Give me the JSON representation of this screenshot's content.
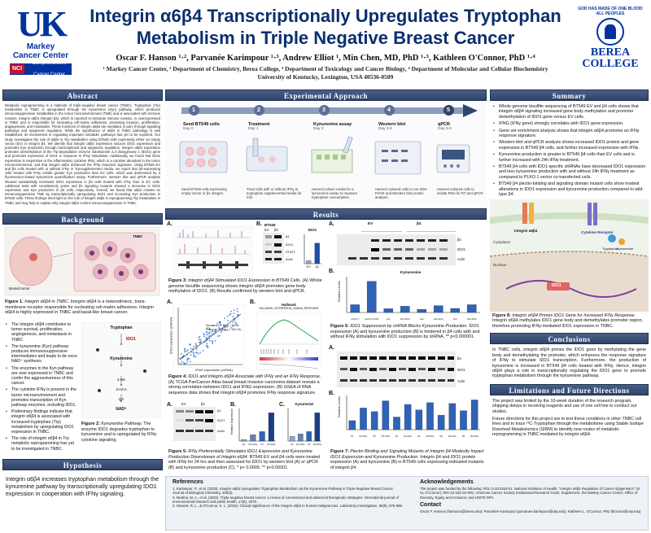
{
  "header": {
    "title_line1": "Integrin α6β4 Transcriptionally Upregulates Tryptophan",
    "title_line2": "Metabolism in Triple Negative Breast Cancer",
    "authors": "Oscar F. Hanson ¹·², Parvanée Karimpour ¹·³, Andrew Elliot ¹, Min Chen, MD, PhD ¹·³, Kathleen O'Connor, PhD ¹·⁴",
    "affiliations_line1": "¹ Markey Cancer Center, ² Department of Chemistry, Berea College, ³ Department of Toxicology and Cancer Biology, ⁴ Department of Molecular and Cellular Biochemistry",
    "affiliations_line2": "University of Kentucky, Lexington, USA 40536-0509",
    "left_logo_mark": "UK",
    "left_logo_line1": "Markey",
    "left_logo_line2": "Cancer Center",
    "nci_badge": "NCI",
    "nci_text": "Comprehensive Cancer Center",
    "right_logo_arc": "GOD HAS MADE OF ONE BLOOD ALL PEOPLES",
    "right_logo_line1": "BEREA",
    "right_logo_line2": "COLLEGE"
  },
  "abstract": {
    "heading": "Abstract",
    "text": "Metabolic reprogramming is a hallmark of triple-negative breast cancer (TNBC). Tryptophan (Trp) metabolism in TNBC is upregulated through the kynurenine (Kyn) pathway, which produces immunosuppressive metabolites in the tumor microenvironment (TME) and is associated with immune evasion. Integrin α6β4 (integrin β4), which is reported to stimulate immune evasion, is overexpressed in TNBC and is responsible for nucleating cell-matrix adhesions, promoting invasion, proliferation, angiogenesis, and metastasis. These functions of integrin α6β4 are mediated, in part, through signaling pathways and epigenetic regulation. While the significance of α6β4 in TNBC pathology is well established, its involvement in regulating important metabolic pathways has yet to be explored. Our study investigates the role of α6β4 in Trp metabolism using BT549 cells expressing either an empty vector (EV) or integrin β4. We identify that integrin α6β4 expression induces IDO1 expression and promotes Kyn production through transcriptional and epigenetic regulation. Integrin α6β4 expression promotes demethylation of the Trp-degradation enzyme indoleamine 2,3 dioxygenase 1 (IDO1) gene and promotes expression of IDO1 in response to IFNγ stimulation. Additionally, we found that IDO1 expression is responsive to the inflammatory cytokine IFNγ, which is a cytokine abundant in the tumor microenvironment, and that integrin α6β4 enhanced the IFNγ response signature. Using BT549 EV and β4 cells treated with or without IFNγ in Trp-supplemented media, we report that β4-expressing cells treated with IFNγ exhibit greater Kyn production than EV cells, which was determined by a fluorescence-based kynurenine quantification assay. Furthermore, western blot and qPCR analysis showed substantially increased IDO1 expression in β4 cells treated with IFNγ than in EV cells. Additional tests with constitutively active and β4 signaling mutants showed a decrease in IDO1 expression and Kyn production in β4 cells, respectively. Overall, we found that α6β4 creates an immunosuppressive TME by transcriptionally upregulating IDO1 and increasing Kyn production in BT549 cells. These findings shed light on the role of integrin α6β4 in reprogramming Trp metabolism in TNBC and may help to explain why integrin α6β4 confers immunosuppression in TNBC."
  },
  "approach": {
    "heading": "Experimental Approach",
    "steps": [
      {
        "num": "1",
        "title": "Seed BT549 cells",
        "day": "Day 0",
        "desc": "Seed BT549 cells expressing empty vector or β4 integrin."
      },
      {
        "num": "2",
        "title": "Treatment",
        "day": "Day 1",
        "desc": "Treat cells with or without IFNγ in tryptophan supplemented media for 24h."
      },
      {
        "num": "3",
        "title": "Kynurenine assay",
        "day": "Day 2",
        "desc": "Harvest culture media for a kynurenine assay to measure tryptophan consumption."
      },
      {
        "num": "4",
        "title": "Western blot",
        "day": "Day 3-6",
        "desc": "Harvest cultured cells to run SDS-PAGE and Western blot protein analysis."
      },
      {
        "num": "5",
        "title": "qPCR",
        "day": "Day 3-6",
        "desc": "Harvest cultured cells to isolate RNA for RT and qPCR."
      }
    ]
  },
  "summary": {
    "heading": "Summary",
    "bullets": [
      "Whole genome bisulfite sequencing of BT549 EV and β4 cells shows that integrin α6β4 signaling increased gene body methylation and promoter demethylation of IDO1 gene versus EV cells.",
      "IFNG (IFNγ gene) strongly correlates with IDO1 gene expression.",
      "Gene set enrichment analysis shows that integrin α6β4 promotes an IFNγ response signature.",
      "Western blot and qPCR analysis shows increased IDO1 protein and gene expression in BT549 β4 cells, and further increased expression with IFNγ.",
      "Kynurenine production is greater in BT549 β4 cells than EV cells and is further increased with 24h IFNγ treatment.",
      "BT549 β4 cells with IDO1-specific shRNAs have decreased IDO1 expression and less kynurenine production with and without 24h IFNγ treatment as compared to PLKO.1 vector co-transfected cells.",
      "BT549 β4 plectin-binding and signaling domain mutant cells show modest alterations in IDO1 expression and kynurenine production compared to wild-type β4."
    ],
    "fig8_caption_bold": "Figure 8:",
    "fig8_caption_italic": "Integrin α6β4 Primes IDO1 Gene for Increased IFNγ Response.",
    "fig8_caption_text": "Integrin α6β4 methylates IDO1 gene body and demethylates promoter region, therefore promoting IFNγ-mediated IDO1 expression in TNBC.",
    "fig8_labels": [
      "Integrin α6β4",
      "Cytokine Receptor",
      "Cytoplasm",
      "Nucleus",
      "IDO1",
      "Tryptophan",
      "Kynurenine"
    ]
  },
  "background": {
    "heading": "Background",
    "fig1_caption_bold": "Figure 1:",
    "fig1_caption_italic": "Integrin α6β4 in TNBC.",
    "fig1_caption_text": "Integrin α6β4 is a heterodimeric, trans-membrane receptor responsible for nucleating cell-matrix adhesions. Integrin α6β4 is highly expressed in TNBC and basal-like breast cancer.",
    "fig1_labels": [
      "Breast tumor",
      "TNBC"
    ],
    "bullets": [
      "The integrin α6β4 contributes to tumor survival, proliferation, angiogenesis, and metastasis in TNBC",
      "The kynurenine (Kyn) pathway produces immunosuppressive intermediates and leads to de novo NAD⁺ synthesis.",
      "The enzymes in the Kyn pathway are over-expressed in TNBC and confer the aggressiveness of this cancer.",
      "The cytokine IFNγ is present in the tumor microenvironment and promotes transcription of Kyn pathway enzymes, including IDO1.",
      "Preliminary findings indicate that integrin α6β4 is associated with increased tryptophan (Trp) metabolism by upregulating IDO1 expression in TNBC.",
      "The role of integrin α6β4 in Trp metabolic reprogramming has yet to be investigated in TNBC."
    ],
    "fig2_caption_bold": "Figure 2:",
    "fig2_caption_italic": "Kynurenine Pathway.",
    "fig2_caption_text": "The enzyme IDO1 degrades tryptophan to kynurenine and is upregulated by IFNγ cytokine signaling.",
    "pathway_nodes": [
      "Tryptophan",
      "IDO1",
      "Kynurenine",
      "3-HK",
      "3-HAA",
      "QA",
      "NAD⁺"
    ]
  },
  "hypothesis": {
    "heading": "Hypothesis",
    "text": "Integrin α6β4 increases tryptophan metabolism through the kynurenine pathway by transcriptionally upregulating IDO1 expression in cooperation with IFNγ signaling."
  },
  "results": {
    "heading": "Results",
    "fig3_caption_bold": "Figure 3:",
    "fig3_caption_italic": "Integrin α6β4 Stimulated IDO1 Expression in BT549 Cells.",
    "fig3_caption_text": "(A) Whole genome bisulfite sequencing shows integrin α6β4 promotes gene body methylation of IDO1. (B) Results confirmed by western blot and qPCR.",
    "fig4_caption_bold": "Figure 4:",
    "fig4_caption_italic": "IDO1 and Integrin α6β4 Associate with IFNγ and an IFNγ Response.",
    "fig4_caption_text": "(A) TCGA PanCancer Atlas basal breast invasive carcinoma dataset reveals a strong correlation between IDO1 and IFNG expression. (B) GSEA of RNA sequence data shows that integrin α6β4 promotes IFNγ response signature.",
    "fig4a_xlabel": "IFNG expression (mRNA)",
    "fig4a_ylabel": "IDO1 expression (mRNA)",
    "fig4a_stats": "Spearman: 0.79 (p = 8.09e-37)",
    "fig4a_stats2": "Pearson: 0.73 (p = 1.62e-26)",
    "fig4b_title": "Hallmark",
    "fig4b_subtitle": "HALLMARK_INTERFERON_GAMMA_RESPONSE",
    "fig5_caption_bold": "Figure 5:",
    "fig5_caption_italic": "IFNγ Preferentially Stimulates IDO1 Expression and Kynurenine Production Downstream of Integrin α6β4.",
    "fig5_caption_text": "BT549 EV and β4 cells were treated with IFNγ for 24 hrs and then assessed for IDO1 by western blot (A) or qPCR (B) and kynurenine production (C). * p< 0.0005. ** p<0.00001.",
    "fig5c_title": "Kynurenine",
    "fig6_caption_bold": "Figure 6:",
    "fig6_caption_italic": "IDO1 Suppression by shRNA Blocks Kynurenine Production.",
    "fig6_caption_text": "IDO1 expression (A) and kynurenine production (B) is hindered in β4 cells with and without IFNγ stimulation with IDO1 suppression by shRNA. ** p<0.000001.",
    "fig6b_title": "Kynurenine",
    "fig6b_ylabel": "Relative Levels",
    "fig7_caption_bold": "Figure 7:",
    "fig7_caption_italic": "Plectin Binding and Signaling Mutants of Integrin β4 Modestly Impact IDO1 Expression and Kynurenine Production.",
    "fig7_caption_text": "Integrin β4 and IDO1 protein expression (A) and kynurenine (B) in BT549 cells expressing indicated mutants of integrin β4.",
    "fig7b_ylabel": "Relative Levels",
    "blot_labels": {
      "bt549": "BT549",
      "ev": "EV",
      "b4": "β4",
      "ido1": "IDO1",
      "actin": "Actin",
      "stat1": "STAT1",
      "ifng": "IFNγ",
      "hsp70": "HSP70"
    },
    "fig3b_chart_title": "IDO1",
    "fig3b_ylabel": "Relative Expression",
    "fig5b_ylabel": "Relative Expression"
  },
  "conclusions": {
    "heading": "Conclusions",
    "text": "In TNBC cells, integrin α6β4 primes the IDO1 gene by methylating the gene body and demethylating the promoter, which enhances the response signature of IFNγ to stimulate IDO1 transcription. Furthermore, the production of kynurenine is increased in BT549 β4 cells treated with IFNγ. Hence, integrin α6β4 plays a role in transcriptionally regulating the IDO1 gene to promote tryptophan metabolism through the kynurenine pathway."
  },
  "limitations": {
    "heading": "Limitations and Future Directions",
    "text1": "The project was limited by the 10-week duration of the research program, shipping delays in receiving reagents and use of one cell line to conduct our studies.",
    "text2": "Future directions for this project are to test these conditions in other TNBC cell lines and to trace ¹³C-Tryptophan through the metabolome using Stable Isotope Resolved Metabolomics (SIRM) to identify new routes of metabolic reprogramming in TNBC mediated by integrin α6β4."
  },
  "references": {
    "heading": "References",
    "items": [
      "1. Kariampur, P., et al. (2023). Integrin α6β4 Upregulates Tryptophan Metabolism via the Kynurenine Pathway in Triple Negative Breast Cancer. Journal of Biological Chemistry, 300(3).",
      "2. Medina, M. A., et al. (2020). Triple-negative breast cancer: a review of conventional and advanced therapeutic strategies. International journal of environmental research and public health, 17(6), 2078.",
      "3. Stewart, R. L., & O'Connor, K. L. (2015). Clinical significance of the integrin α6β4 in human malignancies. Laboratory investigation, 95(9), 976-986."
    ],
    "ack_heading": "Acknowledgements",
    "ack_text": "The project was funded by the following: R01 CA223164-01, National Institutes of Health, \"Integrin α6β4 Regulation of Cancer Epigenetics\" (to KL O'Connor); IRG-22-152-34-IRG, American Cancer Society Institutional Research Grant. Supplement, the Markey Cancer Center; Office of Diversity, Equity and Inclusion; and UNITE RPA.",
    "contact_heading": "Contact",
    "contact_text": "Oscar F. Hanson (hansono@berea.edu); Parvanée Karimpour (parvanee.karimpour@uky.edu); Kathleen L. O'Connor, PhD (kloconn@uky.edu)"
  },
  "chart_data": [
    {
      "type": "bar",
      "title": "IDO1",
      "ylabel": "Relative Expression",
      "categories": [
        "EV",
        "β4"
      ],
      "values": [
        1,
        7
      ],
      "ylim": [
        0,
        10
      ]
    },
    {
      "type": "scatter",
      "xlabel": "IFNG expression (mRNA)",
      "ylabel": "IDO1 expression (mRNA)",
      "trend": "positive"
    },
    {
      "type": "bar",
      "title": "",
      "ylabel": "Relative Expression",
      "categories": [
        "EV",
        "EV+IFNγ",
        "β4",
        "β4+IFNγ"
      ],
      "values": [
        1,
        4,
        6,
        18
      ]
    },
    {
      "type": "bar",
      "title": "Kynurenine",
      "categories": [
        "EV",
        "EV+IFNγ",
        "β4",
        "β4+IFNγ"
      ],
      "values": [
        1,
        1.5,
        2,
        6
      ]
    },
    {
      "type": "bar",
      "title": "Kynurenine",
      "ylabel": "Relative Levels",
      "categories": [
        "pLKO.1",
        "pLKO.1+IFNγ",
        "sh1",
        "sh1+IFNγ",
        "sh2",
        "sh2+IFNγ",
        "sh3",
        "sh3+IFNγ"
      ],
      "values": [
        2.5,
        10,
        1.2,
        2,
        1,
        2.2,
        1.3,
        2.5
      ]
    },
    {
      "type": "bar",
      "ylabel": "Relative Levels",
      "categories": [
        "EV",
        "EV+IFNγ",
        "WT",
        "WT+IFNγ",
        "M1",
        "M1+IFNγ",
        "M2",
        "M2+IFNγ",
        "M3",
        "M3+IFNγ",
        "M4",
        "M4+IFNγ"
      ],
      "values": [
        1,
        2.4,
        2,
        3.2,
        1.4,
        2.8,
        2.2,
        3,
        1.6,
        2.9,
        2.1,
        3.3
      ]
    }
  ]
}
